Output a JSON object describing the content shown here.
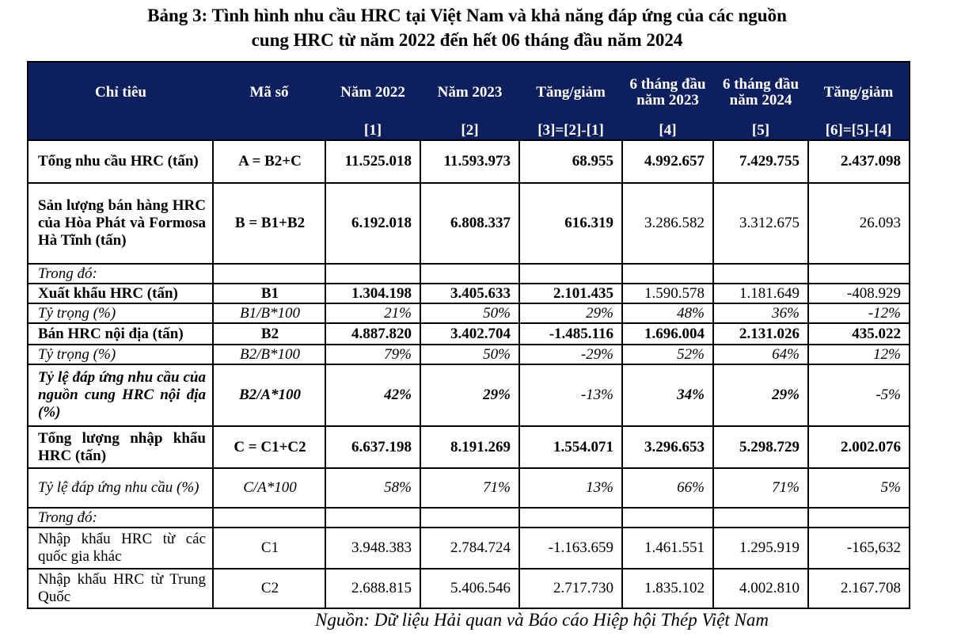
{
  "title_line1": "Bảng 3: Tình hình nhu cầu HRC tại Việt Nam và khả năng đáp ứng của các nguồn",
  "title_line2": "cung HRC từ năm 2022 đến hết 06 tháng đầu năm 2024",
  "header": [
    {
      "label": "Chỉ tiêu",
      "ref": ""
    },
    {
      "label": "Mã số",
      "ref": ""
    },
    {
      "label": "Năm 2022",
      "ref": "[1]"
    },
    {
      "label": "Năm 2023",
      "ref": "[2]"
    },
    {
      "label": "Tăng/giảm",
      "ref": "[3]=[2]-[1]"
    },
    {
      "label": "6 tháng đầu năm 2023",
      "ref": "[4]"
    },
    {
      "label": "6 tháng đầu năm 2024",
      "ref": "[5]"
    },
    {
      "label": "Tăng/giảm",
      "ref": "[6]=[5]-[4]"
    }
  ],
  "rows": [
    {
      "cells": [
        "Tổng nhu cầu HRC (tấn)",
        "A = B2+C",
        "11.525.018",
        "11.593.973",
        "68.955",
        "4.992.657",
        "7.429.755",
        "2.437.098"
      ],
      "style": [
        "b",
        "b",
        "b",
        "b",
        "b",
        "b",
        "b",
        "b"
      ]
    },
    {
      "cells": [
        "Sản lượng bán hàng HRC của Hòa Phát và Formosa Hà Tĩnh (tấn)",
        "B = B1+B2",
        "6.192.018",
        "6.808.337",
        "616.319",
        "3.286.582",
        "3.312.675",
        "26.093"
      ],
      "style": [
        "b",
        "b",
        "b",
        "b",
        "b",
        "",
        "",
        ""
      ]
    },
    {
      "cells": [
        "Trong đó:",
        "",
        "",
        "",
        "",
        "",
        "",
        ""
      ],
      "style": [
        "i",
        "",
        "",
        "",
        "",
        "",
        "",
        ""
      ]
    },
    {
      "cells": [
        "Xuất khẩu HRC (tấn)",
        "B1",
        "1.304.198",
        "3.405.633",
        "2.101.435",
        "1.590.578",
        "1.181.649",
        "-408.929"
      ],
      "style": [
        "b",
        "b",
        "b",
        "b",
        "b",
        "",
        "",
        ""
      ]
    },
    {
      "cells": [
        "Tỷ trọng (%)",
        "B1/B*100",
        "21%",
        "50%",
        "29%",
        "48%",
        "36%",
        "-12%"
      ],
      "style": [
        "i",
        "i",
        "i",
        "i",
        "i",
        "i",
        "i",
        "i"
      ]
    },
    {
      "cells": [
        "Bán HRC nội địa (tấn)",
        "B2",
        "4.887.820",
        "3.402.704",
        "-1.485.116",
        "1.696.004",
        "2.131.026",
        "435.022"
      ],
      "style": [
        "b",
        "b",
        "b",
        "b",
        "b",
        "b",
        "b",
        "b"
      ]
    },
    {
      "cells": [
        "Tỷ trọng (%)",
        "B2/B*100",
        "79%",
        "50%",
        "-29%",
        "52%",
        "64%",
        "12%"
      ],
      "style": [
        "i",
        "i",
        "i",
        "i",
        "i",
        "i",
        "i",
        "i"
      ]
    },
    {
      "cells": [
        "Tỷ lệ đáp ứng nhu cầu của nguồn cung HRC nội địa (%)",
        "B2/A*100",
        "42%",
        "29%",
        "-13%",
        "34%",
        "29%",
        "-5%"
      ],
      "style": [
        "bi",
        "bi",
        "bi",
        "bi",
        "i",
        "bi",
        "bi",
        "i"
      ]
    },
    {
      "cells": [
        "Tổng lượng nhập khẩu HRC (tấn)",
        "C = C1+C2",
        "6.637.198",
        "8.191.269",
        "1.554.071",
        "3.296.653",
        "5.298.729",
        "2.002.076"
      ],
      "style": [
        "b",
        "b",
        "b",
        "b",
        "b",
        "b",
        "b",
        "b"
      ]
    },
    {
      "cells": [
        "Tỷ lệ đáp ứng nhu cầu (%)",
        "C/A*100",
        "58%",
        "71%",
        "13%",
        "66%",
        "71%",
        "5%"
      ],
      "style": [
        "i",
        "i",
        "i",
        "i",
        "i",
        "i",
        "i",
        "i"
      ]
    },
    {
      "cells": [
        "Trong đó:",
        "",
        "",
        "",
        "",
        "",
        "",
        ""
      ],
      "style": [
        "i",
        "",
        "",
        "",
        "",
        "",
        "",
        ""
      ]
    },
    {
      "cells": [
        "Nhập khẩu HRC từ các quốc gia khác",
        "C1",
        "3.948.383",
        "2.784.724",
        "-1.163.659",
        "1.461.551",
        "1.295.919",
        "-165,632"
      ],
      "style": [
        "",
        "",
        "",
        "",
        "",
        "",
        "",
        ""
      ]
    },
    {
      "cells": [
        "Nhập khẩu HRC từ Trung Quốc",
        "C2",
        "2.688.815",
        "5.406.546",
        "2.717.730",
        "1.835.102",
        "4.002.810",
        "2.167.708"
      ],
      "style": [
        "",
        "",
        "",
        "",
        "",
        "",
        "",
        ""
      ]
    }
  ],
  "source": "Nguồn: Dữ liệu Hải quan và Báo cáo Hiệp hội Thép Việt Nam"
}
